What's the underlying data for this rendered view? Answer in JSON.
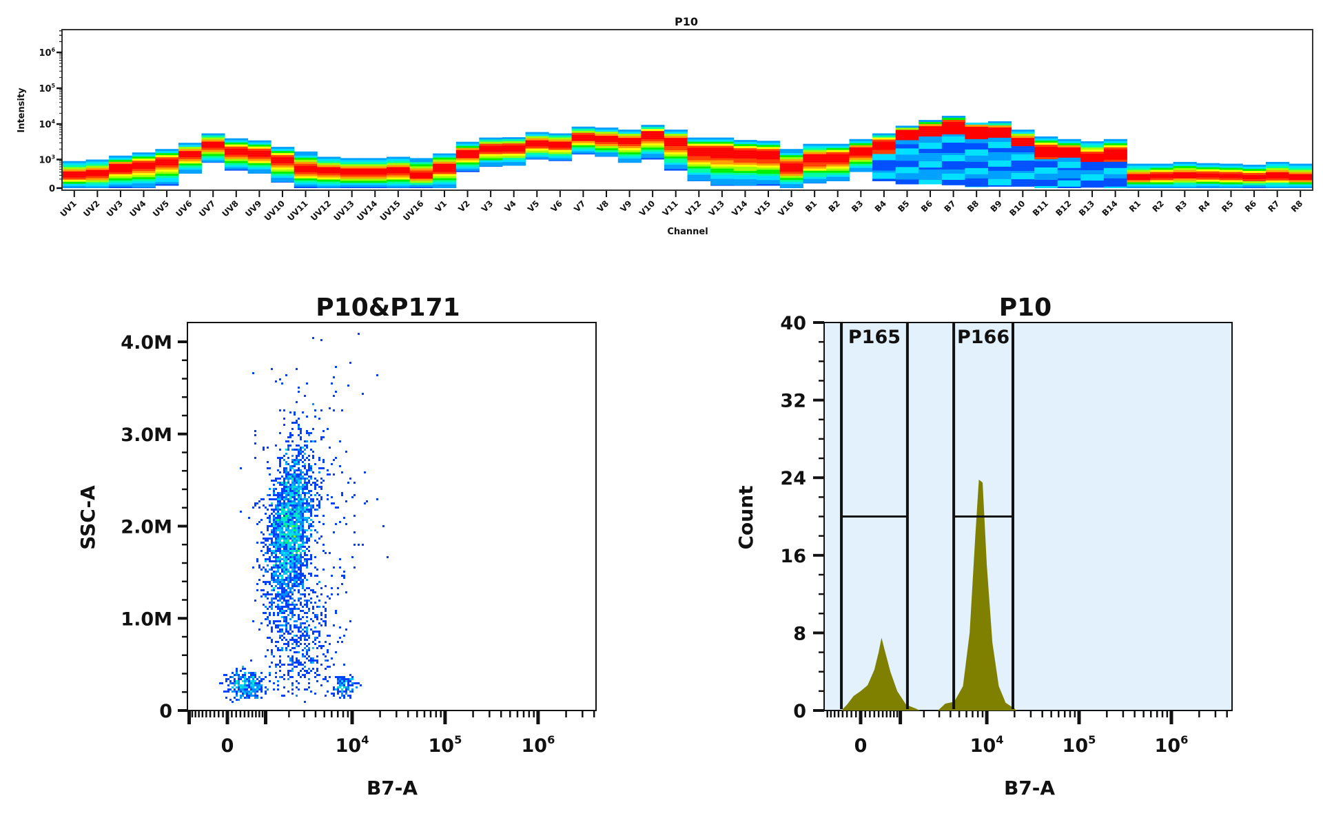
{
  "chart_data": [
    {
      "type": "heatmap",
      "title": "P10",
      "xlabel": "Channel",
      "ylabel": "Intensity",
      "y_scale": "biexponential",
      "y_ticks": [
        {
          "base": "0",
          "exp": ""
        },
        {
          "base": "10",
          "exp": "3"
        },
        {
          "base": "10",
          "exp": "4"
        },
        {
          "base": "10",
          "exp": "5"
        },
        {
          "base": "10",
          "exp": "6"
        }
      ],
      "y_tick_values": [
        0,
        1000,
        10000,
        100000,
        1000000
      ],
      "colormap": [
        "#0050ff",
        "#00a0ff",
        "#00e0ff",
        "#00ffa0",
        "#00f000",
        "#a0ff00",
        "#ffff00",
        "#ffa000",
        "#ff4000",
        "#ff0000"
      ],
      "columns_fields": [
        "channel",
        "min",
        "max",
        "peak",
        "low_population_top"
      ],
      "columns": [
        [
          "UV1",
          0,
          900,
          300,
          0
        ],
        [
          "UV2",
          0,
          1000,
          350,
          0
        ],
        [
          "UV3",
          0,
          1300,
          600,
          0
        ],
        [
          "UV4",
          0,
          1600,
          700,
          0
        ],
        [
          "UV5",
          50,
          2000,
          900,
          0
        ],
        [
          "UV6",
          350,
          3000,
          1500,
          0
        ],
        [
          "UV7",
          800,
          5500,
          2800,
          0
        ],
        [
          "UV8",
          450,
          4000,
          1800,
          0
        ],
        [
          "UV9",
          350,
          3500,
          1600,
          0
        ],
        [
          "UV10",
          120,
          2300,
          1000,
          0
        ],
        [
          "UV11",
          0,
          1700,
          500,
          0
        ],
        [
          "UV12",
          0,
          1200,
          450,
          0
        ],
        [
          "UV13",
          0,
          1100,
          400,
          0
        ],
        [
          "UV14",
          0,
          1100,
          400,
          0
        ],
        [
          "UV15",
          0,
          1200,
          450,
          0
        ],
        [
          "UV16",
          0,
          1100,
          300,
          0
        ],
        [
          "V1",
          0,
          1500,
          600,
          0
        ],
        [
          "V2",
          400,
          3200,
          1500,
          0
        ],
        [
          "V3",
          600,
          4200,
          2200,
          0
        ],
        [
          "V4",
          650,
          4300,
          2200,
          0
        ],
        [
          "V5",
          1000,
          6000,
          3000,
          0
        ],
        [
          "V6",
          900,
          5500,
          2800,
          0
        ],
        [
          "V7",
          1400,
          8500,
          4500,
          0
        ],
        [
          "V8",
          1200,
          8000,
          4000,
          0
        ],
        [
          "V9",
          800,
          7000,
          3500,
          0
        ],
        [
          "V10",
          1000,
          9500,
          5500,
          0
        ],
        [
          "V11",
          450,
          7000,
          3500,
          0
        ],
        [
          "V12",
          150,
          4200,
          1800,
          0
        ],
        [
          "V13",
          50,
          4200,
          1800,
          0
        ],
        [
          "V14",
          50,
          3600,
          1600,
          0
        ],
        [
          "V15",
          50,
          3400,
          1500,
          0
        ],
        [
          "V16",
          0,
          2000,
          600,
          0
        ],
        [
          "B1",
          100,
          2800,
          1100,
          0
        ],
        [
          "B2",
          150,
          2800,
          1200,
          0
        ],
        [
          "B3",
          400,
          3800,
          1800,
          0
        ],
        [
          "B4",
          150,
          5500,
          3000,
          1500
        ],
        [
          "B5",
          80,
          9000,
          6000,
          3500
        ],
        [
          "B6",
          80,
          13000,
          8000,
          4500
        ],
        [
          "B7",
          60,
          17000,
          11000,
          5000
        ],
        [
          "B8",
          20,
          11000,
          8000,
          4000
        ],
        [
          "B9",
          30,
          12000,
          7000,
          4000
        ],
        [
          "B10",
          30,
          7000,
          3500,
          2500
        ],
        [
          "B11",
          0,
          4500,
          2000,
          1000
        ],
        [
          "B12",
          0,
          3800,
          1800,
          1200
        ],
        [
          "B13",
          10,
          3300,
          1200,
          900
        ],
        [
          "B14",
          0,
          3800,
          1600,
          800
        ],
        [
          "R1",
          0,
          750,
          250,
          0
        ],
        [
          "R2",
          0,
          750,
          280,
          0
        ],
        [
          "R3",
          0,
          850,
          300,
          0
        ],
        [
          "R4",
          0,
          780,
          300,
          0
        ],
        [
          "R5",
          0,
          750,
          260,
          0
        ],
        [
          "R6",
          0,
          700,
          250,
          0
        ],
        [
          "R7",
          0,
          850,
          280,
          0
        ],
        [
          "R8",
          0,
          750,
          250,
          0
        ]
      ]
    },
    {
      "type": "scatter",
      "title": "P10&P171",
      "xlabel": "B7-A",
      "ylabel": "SSC-A",
      "x_scale": "biexponential",
      "x_ticks": [
        {
          "base": "0",
          "exp": ""
        },
        {
          "base": "10",
          "exp": "4"
        },
        {
          "base": "10",
          "exp": "5"
        },
        {
          "base": "10",
          "exp": "6"
        }
      ],
      "x_tick_values": [
        0,
        10000,
        100000,
        1000000
      ],
      "y_ticks": [
        "0",
        "1.0M",
        "2.0M",
        "3.0M",
        "4.0M"
      ],
      "y_tick_values": [
        0,
        1000000,
        2000000,
        3000000,
        4000000
      ],
      "coloring": "density",
      "populations_fields": [
        "center_b7a",
        "center_ssc",
        "spread_decades",
        "spread_ssc",
        "count",
        "tilt"
      ],
      "populations": [
        [
          2040,
          1950000,
          0.12,
          450000,
          2200,
          0.09
        ],
        [
          2600,
          800000,
          0.18,
          350000,
          500,
          0
        ],
        [
          420,
          280000,
          0.1,
          80000,
          300,
          0
        ],
        [
          8300,
          260000,
          0.07,
          60000,
          120,
          0
        ],
        [
          3500,
          2300000,
          0.3,
          700000,
          250,
          0
        ]
      ]
    },
    {
      "type": "area",
      "title": "P10",
      "xlabel": "B7-A",
      "ylabel": "Count",
      "x_scale": "biexponential",
      "x_ticks": [
        {
          "base": "0",
          "exp": ""
        },
        {
          "base": "10",
          "exp": "4"
        },
        {
          "base": "10",
          "exp": "5"
        },
        {
          "base": "10",
          "exp": "6"
        }
      ],
      "x_tick_values": [
        0,
        10000,
        100000,
        1000000
      ],
      "y_ticks": [
        "0",
        "8",
        "16",
        "24",
        "32",
        "40"
      ],
      "y_tick_values": [
        0,
        8,
        16,
        24,
        32,
        40
      ],
      "ylim": [
        0,
        40
      ],
      "fill_color": "#808000",
      "background_color": "#e3f1fc",
      "series": [
        {
          "points": [
            [
              -430,
              0
            ],
            [
              -300,
              0.6
            ],
            [
              -150,
              1.5
            ],
            [
              0,
              2
            ],
            [
              150,
              2.6
            ],
            [
              300,
              4.2
            ],
            [
              400,
              6
            ],
            [
              470,
              7.5
            ],
            [
              550,
              6.2
            ],
            [
              700,
              4
            ],
            [
              900,
              2
            ],
            [
              1200,
              0.6
            ],
            [
              1600,
              0.2
            ],
            [
              1800,
              0
            ]
          ]
        },
        {
          "points": [
            [
              2900,
              0
            ],
            [
              3500,
              0.7
            ],
            [
              4400,
              0.9
            ],
            [
              5500,
              2.5
            ],
            [
              6500,
              8
            ],
            [
              7500,
              18
            ],
            [
              8200,
              23.8
            ],
            [
              9000,
              23.5
            ],
            [
              10000,
              15
            ],
            [
              11500,
              7
            ],
            [
              13500,
              2.5
            ],
            [
              16000,
              0.8
            ],
            [
              20000,
              0.2
            ],
            [
              21000,
              0
            ]
          ]
        }
      ],
      "gates": [
        {
          "name": "P165",
          "min": -430,
          "max": 1250,
          "level": 20
        },
        {
          "name": "P166",
          "min": 4350,
          "max": 19200,
          "level": 20
        }
      ]
    }
  ]
}
